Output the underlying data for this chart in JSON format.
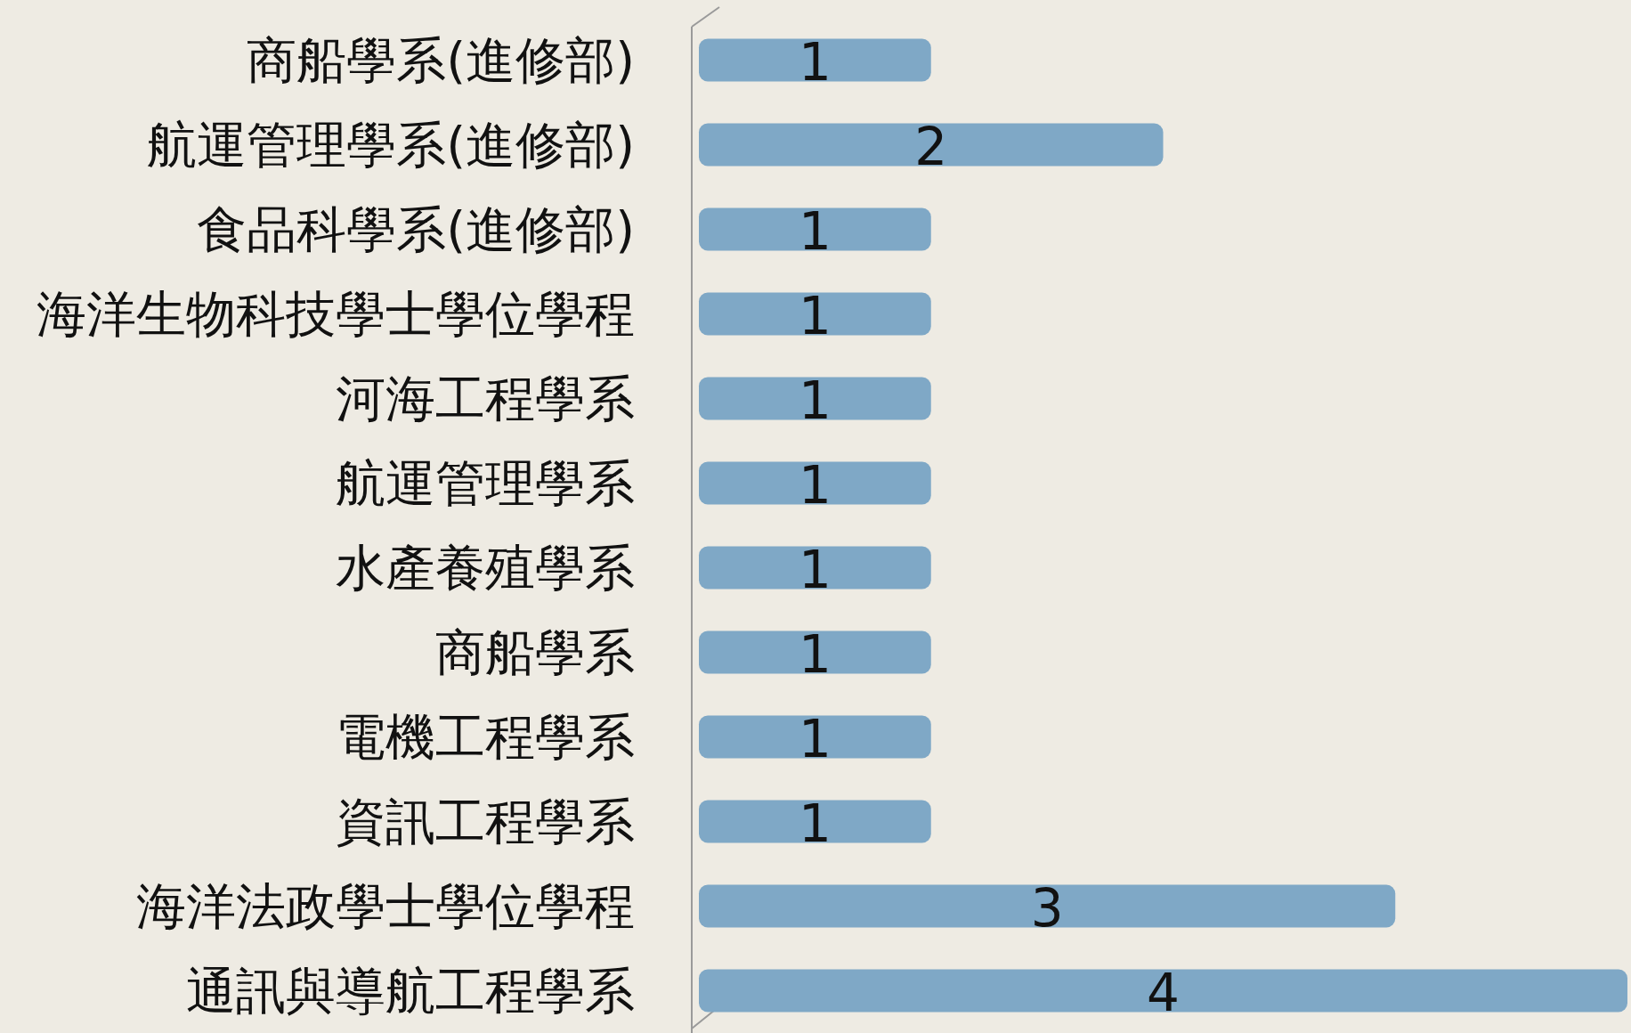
{
  "chart_data": {
    "type": "bar",
    "orientation": "horizontal",
    "data_labels": true,
    "color": "#7fa8c6",
    "categories": [
      "商船學系(進修部)",
      "航運管理學系(進修部)",
      "食品科學系(進修部)",
      "海洋生物科技學士學位學程",
      "河海工程學系",
      "航運管理學系",
      "水產養殖學系",
      "商船學系",
      "電機工程學系",
      "資訊工程學系",
      "海洋法政學士學位學程",
      "通訊與導航工程學系"
    ],
    "values": [
      1,
      2,
      1,
      1,
      1,
      1,
      1,
      1,
      1,
      1,
      3,
      4
    ]
  }
}
